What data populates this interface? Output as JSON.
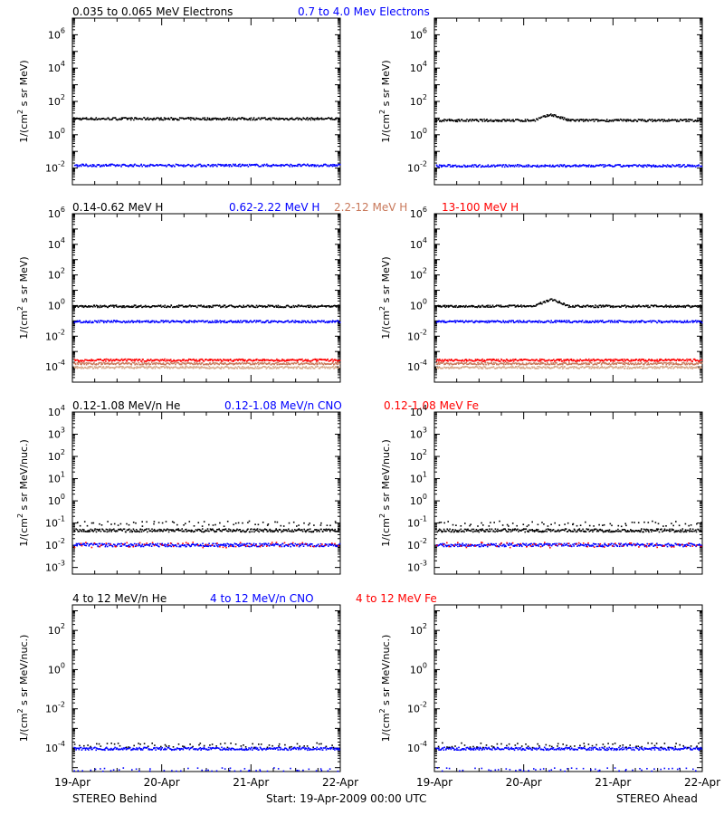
{
  "colors": {
    "black": "#000000",
    "blue": "#0000ff",
    "red": "#ff0000",
    "brown": "#c8785a",
    "tan": "#d7aa8c"
  },
  "footer": {
    "left": "STEREO Behind",
    "center": "Start: 19-Apr-2009 00:00 UTC",
    "right": "STEREO Ahead"
  },
  "chart_data": [
    {
      "type": "scatter",
      "legend": [
        {
          "text": "0.035 to 0.065 MeV Electrons",
          "color": "black"
        },
        {
          "text": "0.7 to 4.0 Mev Electrons",
          "color": "blue"
        }
      ],
      "ylabel": [
        "1/(cm",
        "2",
        " s sr MeV)"
      ],
      "y_scale": "log",
      "y_exp_range": [
        -3,
        7
      ],
      "y_ticks": [
        "-2",
        "0",
        "2",
        "4",
        "6"
      ],
      "x_ticks": [
        "19-Apr",
        "20-Apr",
        "21-Apr",
        "22-Apr"
      ],
      "x_range": [
        "19-Apr-2009",
        "22-Apr-2009"
      ],
      "panels": [
        {
          "name": "STEREO Behind",
          "series": [
            {
              "color": "black",
              "value": 10
            },
            {
              "color": "blue",
              "value": 0.016
            }
          ]
        },
        {
          "name": "STEREO Ahead",
          "series": [
            {
              "color": "black",
              "value": 8,
              "peak": {
                "x_day": 1.45,
                "value": 18
              }
            },
            {
              "color": "blue",
              "value": 0.015
            }
          ]
        }
      ]
    },
    {
      "type": "scatter",
      "legend": [
        {
          "text": "0.14-0.62 MeV H",
          "color": "black"
        },
        {
          "text": "0.62-2.22 MeV H",
          "color": "blue"
        },
        {
          "text": "2.2-12 MeV H",
          "color": "brown"
        },
        {
          "text": "13-100 MeV H",
          "color": "red"
        }
      ],
      "ylabel": [
        "1/(cm",
        "2",
        " s sr MeV)"
      ],
      "y_scale": "log",
      "y_exp_range": [
        -5,
        6
      ],
      "y_ticks": [
        "-4",
        "-2",
        "0",
        "2",
        "4",
        "6"
      ],
      "x_ticks": [
        "19-Apr",
        "20-Apr",
        "21-Apr",
        "22-Apr"
      ],
      "x_range": [
        "19-Apr-2009",
        "22-Apr-2009"
      ],
      "panels": [
        {
          "name": "STEREO Behind",
          "series": [
            {
              "color": "black",
              "value": 1.0
            },
            {
              "color": "blue",
              "value": 0.1
            },
            {
              "color": "red",
              "value": 0.0003
            },
            {
              "color": "brown",
              "value": 0.00018
            },
            {
              "color": "tan",
              "value": 0.0001
            }
          ]
        },
        {
          "name": "STEREO Ahead",
          "series": [
            {
              "color": "black",
              "value": 1.0,
              "peak": {
                "x_day": 1.45,
                "value": 3
              }
            },
            {
              "color": "blue",
              "value": 0.1
            },
            {
              "color": "red",
              "value": 0.0003
            },
            {
              "color": "brown",
              "value": 0.00018
            },
            {
              "color": "tan",
              "value": 0.0001
            }
          ]
        }
      ]
    },
    {
      "type": "scatter",
      "legend": [
        {
          "text": "0.12-1.08 MeV/n He",
          "color": "black"
        },
        {
          "text": "0.12-1.08 MeV/n CNO",
          "color": "blue"
        },
        {
          "text": "0.12-1.08 MeV Fe",
          "color": "red"
        }
      ],
      "ylabel": [
        "1/(cm",
        "2",
        " s sr MeV/nuc.)"
      ],
      "y_scale": "log",
      "y_exp_range": [
        -3.3,
        4
      ],
      "y_ticks": [
        "-3",
        "-2",
        "-1",
        "0",
        "1",
        "2",
        "3",
        "4"
      ],
      "x_ticks": [
        "19-Apr",
        "20-Apr",
        "21-Apr",
        "22-Apr"
      ],
      "x_range": [
        "19-Apr-2009",
        "22-Apr-2009"
      ],
      "panels": [
        {
          "name": "STEREO Behind",
          "series": [
            {
              "color": "black",
              "value": 0.05
            },
            {
              "color": "black",
              "value": 0.1,
              "sparse": true
            },
            {
              "color": "blue",
              "value": 0.011
            },
            {
              "color": "red",
              "value": 0.011,
              "sparse": true
            }
          ]
        },
        {
          "name": "STEREO Ahead",
          "series": [
            {
              "color": "black",
              "value": 0.05
            },
            {
              "color": "black",
              "value": 0.1,
              "sparse": true
            },
            {
              "color": "blue",
              "value": 0.011
            },
            {
              "color": "red",
              "value": 0.011,
              "sparse": true
            }
          ]
        }
      ]
    },
    {
      "type": "scatter",
      "legend": [
        {
          "text": "4 to 12 MeV/n He",
          "color": "black"
        },
        {
          "text": "4 to 12 MeV/n CNO",
          "color": "blue"
        },
        {
          "text": "4 to 12 MeV Fe",
          "color": "red"
        }
      ],
      "ylabel": [
        "1/(cm",
        "2",
        " s sr MeV/nuc.)"
      ],
      "y_scale": "log",
      "y_exp_range": [
        -5.2,
        3.3
      ],
      "y_ticks": [
        "-4",
        "-2",
        "0",
        "2"
      ],
      "x_ticks": [
        "19-Apr",
        "20-Apr",
        "21-Apr",
        "22-Apr"
      ],
      "x_range": [
        "19-Apr-2009",
        "22-Apr-2009"
      ],
      "panels": [
        {
          "name": "STEREO Behind",
          "series": [
            {
              "color": "blue",
              "value": 0.0001
            },
            {
              "color": "black",
              "value": 0.00015,
              "sparse": true
            },
            {
              "color": "blue",
              "value": 8e-06,
              "sparse": true
            }
          ]
        },
        {
          "name": "STEREO Ahead",
          "series": [
            {
              "color": "blue",
              "value": 0.0001
            },
            {
              "color": "black",
              "value": 0.00015,
              "sparse": true
            },
            {
              "color": "blue",
              "value": 8e-06,
              "sparse": true
            }
          ]
        }
      ]
    }
  ]
}
